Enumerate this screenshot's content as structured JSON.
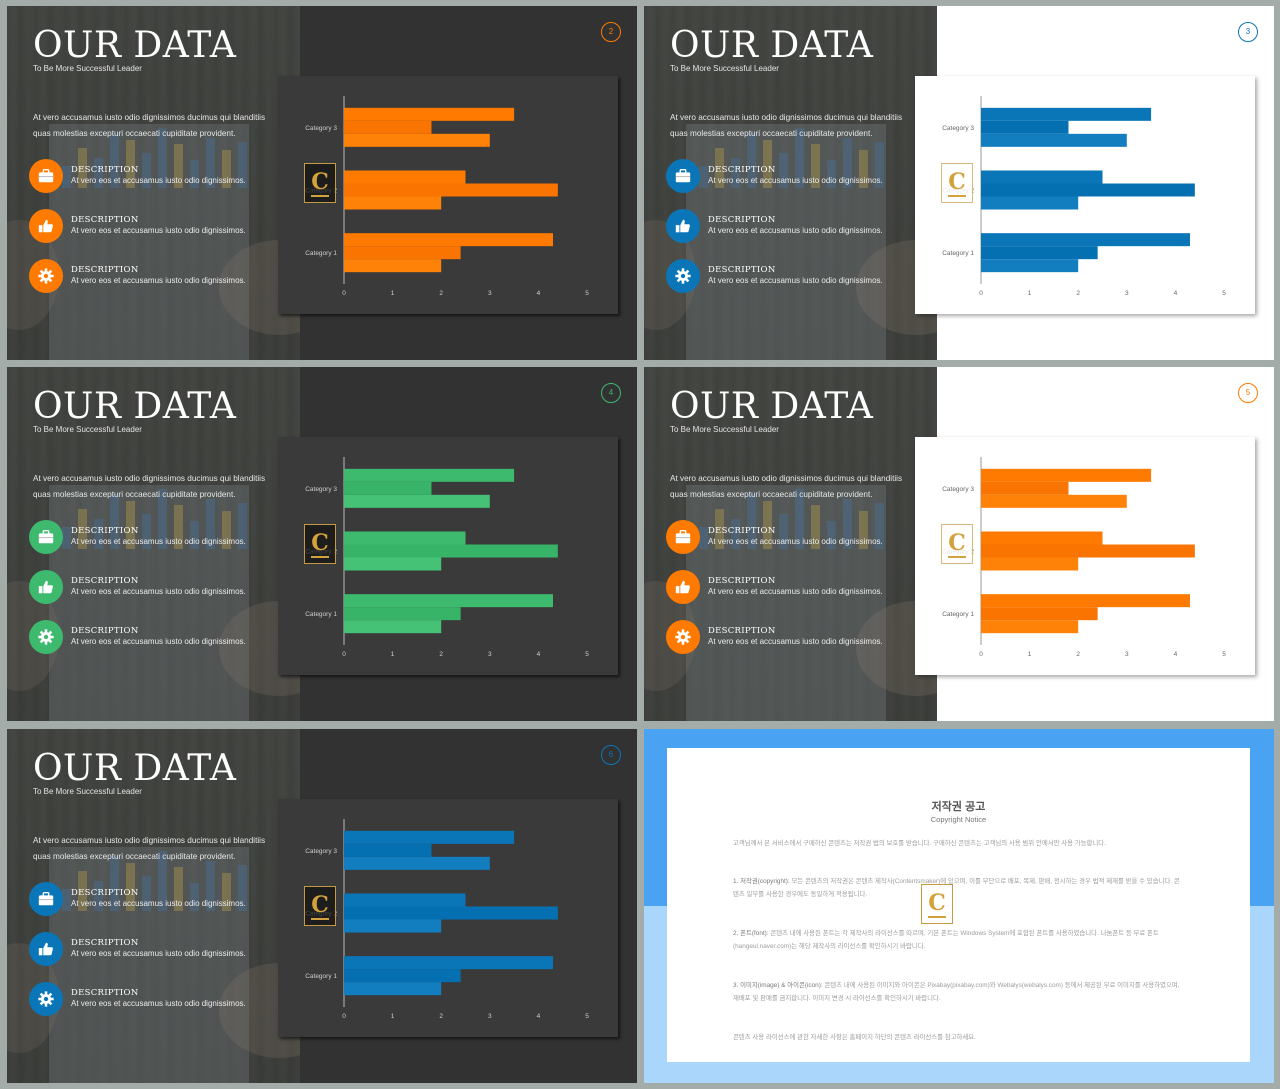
{
  "slides": [
    {
      "theme": "dark",
      "accent": "#ff7a00",
      "page": "2",
      "title": "OUR DATA",
      "subtitle": "To Be More Successful Leader",
      "body": "At vero accusamus iusto odio dignissimos ducimus qui blanditiis quas molestias excepturi occaecati cupiditate provident.",
      "items": [
        {
          "icon": "briefcase-icon",
          "label": "DESCRIPTION",
          "text": "At vero eos et accusamus iusto odio dignissimos."
        },
        {
          "icon": "thumbs-up-icon",
          "label": "DESCRIPTION",
          "text": "At vero eos et accusamus iusto odio dignissimos."
        },
        {
          "icon": "gear-icon",
          "label": "DESCRIPTION",
          "text": "At vero eos et accusamus iusto odio dignissimos."
        }
      ]
    },
    {
      "theme": "light",
      "accent": "#0a76b8",
      "page": "3",
      "title": "OUR DATA",
      "subtitle": "To Be More Successful Leader",
      "body": "At vero accusamus iusto odio dignissimos ducimus qui blanditiis quas molestias excepturi occaecati cupiditate provident.",
      "items": [
        {
          "icon": "briefcase-icon",
          "label": "DESCRIPTION",
          "text": "At vero eos et accusamus iusto odio dignissimos."
        },
        {
          "icon": "thumbs-up-icon",
          "label": "DESCRIPTION",
          "text": "At vero eos et accusamus iusto odio dignissimos."
        },
        {
          "icon": "gear-icon",
          "label": "DESCRIPTION",
          "text": "At vero eos et accusamus iusto odio dignissimos."
        }
      ]
    },
    {
      "theme": "dark",
      "accent": "#3dba6e",
      "page": "4",
      "title": "OUR DATA",
      "subtitle": "To Be More Successful Leader",
      "body": "At vero accusamus iusto odio dignissimos ducimus qui blanditiis quas molestias excepturi occaecati cupiditate provident.",
      "items": [
        {
          "icon": "briefcase-icon",
          "label": "DESCRIPTION",
          "text": "At vero eos et accusamus iusto odio dignissimos."
        },
        {
          "icon": "thumbs-up-icon",
          "label": "DESCRIPTION",
          "text": "At vero eos et accusamus iusto odio dignissimos."
        },
        {
          "icon": "gear-icon",
          "label": "DESCRIPTION",
          "text": "At vero eos et accusamus iusto odio dignissimos."
        }
      ]
    },
    {
      "theme": "light",
      "accent": "#ff7a00",
      "page": "5",
      "title": "OUR DATA",
      "subtitle": "To Be More Successful Leader",
      "body": "At vero accusamus iusto odio dignissimos ducimus qui blanditiis quas molestias excepturi occaecati cupiditate provident.",
      "items": [
        {
          "icon": "briefcase-icon",
          "label": "DESCRIPTION",
          "text": "At vero eos et accusamus iusto odio dignissimos."
        },
        {
          "icon": "thumbs-up-icon",
          "label": "DESCRIPTION",
          "text": "At vero eos et accusamus iusto odio dignissimos."
        },
        {
          "icon": "gear-icon",
          "label": "DESCRIPTION",
          "text": "At vero eos et accusamus iusto odio dignissimos."
        }
      ]
    },
    {
      "theme": "dark",
      "accent": "#0a76b8",
      "page": "6",
      "title": "OUR DATA",
      "subtitle": "To Be More Successful Leader",
      "body": "At vero accusamus iusto odio dignissimos ducimus qui blanditiis quas molestias excepturi occaecati cupiditate provident.",
      "items": [
        {
          "icon": "briefcase-icon",
          "label": "DESCRIPTION",
          "text": "At vero eos et accusamus iusto odio dignissimos."
        },
        {
          "icon": "thumbs-up-icon",
          "label": "DESCRIPTION",
          "text": "At vero eos et accusamus iusto odio dignissimos."
        },
        {
          "icon": "gear-icon",
          "label": "DESCRIPTION",
          "text": "At vero eos et accusamus iusto odio dignissimos."
        }
      ]
    }
  ],
  "chart_data": {
    "type": "bar",
    "orientation": "horizontal",
    "categories": [
      "Category 1",
      "Category 2",
      "Category 3"
    ],
    "series": [
      {
        "values": [
          4.3,
          2.5,
          3.5
        ]
      },
      {
        "values": [
          2.4,
          4.4,
          1.8
        ]
      },
      {
        "values": [
          2.0,
          2.0,
          3.0
        ]
      }
    ],
    "xticks": [
      "0",
      "1",
      "2",
      "3",
      "4",
      "5"
    ],
    "xlim": [
      0,
      5
    ],
    "grid": false,
    "legend": "none"
  },
  "notice": {
    "title": "저작권 공고",
    "subtitle": "Copyright Notice",
    "intro": "고객님께서 본 서비스에서 구매하신 콘텐츠는 저작권 법의 보호를 받습니다. 구매하신 콘텐츠는 고객님의 사용 범위 안에서만 사용 가능합니다.",
    "p1_label": "1. 저작권(copyright):",
    "p1": "모든 콘텐츠의 저작권은 콘텐츠 제작사(Contentsmaker)에 있으며, 이를 무단으로 배포, 복제, 판매, 전시하는 경우 법적 제재를 받을 수 있습니다. 콘텐츠 일부를 사용한 경우에도 동일하게 적용됩니다.",
    "p2_label": "2. 폰트(font):",
    "p2": "콘텐츠 내에 사용된 폰트는 각 제작사의 라이선스를 따르며, 기본 폰트는 Windows System에 포함된 폰트를 사용하였습니다. 나눔폰트 등 무료 폰트(hangeul.naver.com)는 해당 제작사의 라이선스를 확인하시기 바랍니다.",
    "p3_label": "3. 이미지(image) & 아이콘(icon):",
    "p3": "콘텐츠 내에 사용된 이미지와 아이콘은 Pixabay(pixabay.com)와 Webalys(webalys.com) 등에서 제공된 무료 이미지를 사용하였으며, 재배포 및 판매를 금지합니다. 이미지 변경 시 라이선스를 확인하시기 바랍니다.",
    "outro": "콘텐츠 사용 라이선스에 관한 자세한 사항은 홈페이지 하단의 콘텐츠 라이선스를 참고하세요."
  }
}
